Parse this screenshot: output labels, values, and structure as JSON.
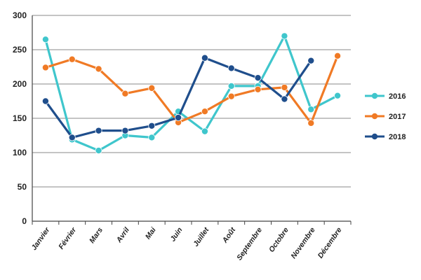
{
  "chart_data": {
    "type": "line",
    "categories": [
      "Janvier",
      "Février",
      "Mars",
      "Avril",
      "Mai",
      "Juin",
      "Juillet",
      "Août",
      "Septembre",
      "Octobre",
      "Novembre",
      "Décembre"
    ],
    "ylim": [
      0,
      300
    ],
    "yticks": [
      0,
      50,
      100,
      150,
      200,
      250,
      300
    ],
    "grid": true,
    "legend_position": "right",
    "series": [
      {
        "name": "2016",
        "color": "#3fc6cc",
        "values": [
          265,
          119,
          103,
          125,
          122,
          160,
          131,
          197,
          197,
          270,
          163,
          183
        ]
      },
      {
        "name": "2017",
        "color": "#f07a25",
        "values": [
          224,
          236,
          222,
          186,
          194,
          144,
          160,
          182,
          192,
          195,
          143,
          241
        ]
      },
      {
        "name": "2018",
        "color": "#1f4e8c",
        "values": [
          175,
          122,
          132,
          132,
          139,
          151,
          238,
          223,
          209,
          178,
          234,
          null
        ]
      }
    ],
    "title": "",
    "xlabel": "",
    "ylabel": ""
  }
}
